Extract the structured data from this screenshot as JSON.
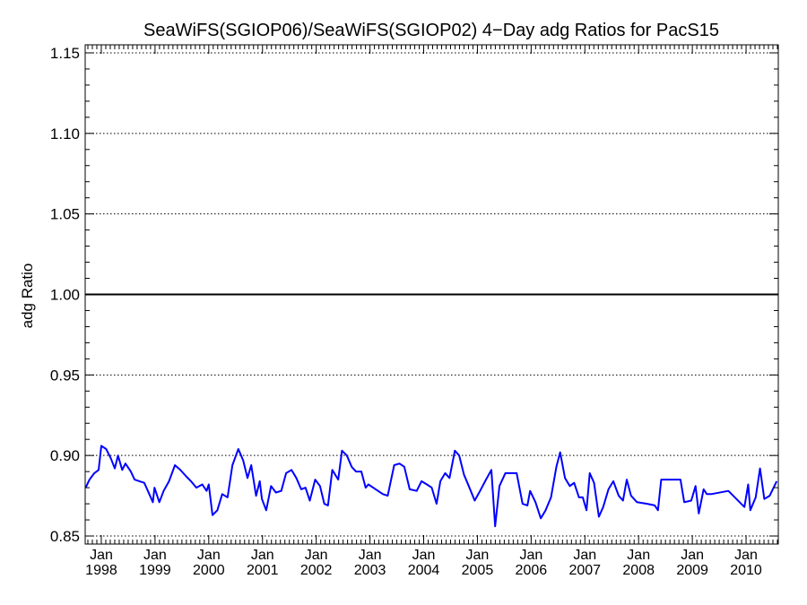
{
  "chart_data": {
    "type": "line",
    "title": "SeaWiFS(SGIOP06)/SeaWiFS(SGIOP02) 4−Day adg Ratios for PacS15",
    "xlabel": "",
    "ylabel": "adg Ratio",
    "xlim": [
      1997.7,
      2010.6
    ],
    "ylim": [
      0.845,
      1.155
    ],
    "yticks": [
      0.85,
      0.9,
      0.95,
      1.0,
      1.05,
      1.1,
      1.15
    ],
    "ytick_labels": [
      "0.85",
      "0.90",
      "0.95",
      "1.00",
      "1.05",
      "1.10",
      "1.15"
    ],
    "xticks": [
      1998,
      1999,
      2000,
      2001,
      2002,
      2003,
      2004,
      2005,
      2006,
      2007,
      2008,
      2009,
      2010
    ],
    "xtick_month_label": "Jan",
    "xtick_year_labels": [
      "1998",
      "1999",
      "2000",
      "2001",
      "2002",
      "2003",
      "2004",
      "2005",
      "2006",
      "2007",
      "2008",
      "2009",
      "2010"
    ],
    "grid": "horizontal-dotted",
    "reference_line": {
      "y": 1.0,
      "color": "#000000"
    },
    "series": [
      {
        "color": "#0000ff",
        "x": [
          1997.71,
          1997.78,
          1997.87,
          1997.95,
          1998.0,
          1998.09,
          1998.18,
          1998.25,
          1998.31,
          1998.39,
          1998.45,
          1998.55,
          1998.62,
          1998.71,
          1998.8,
          1998.96,
          1998.99,
          1999.08,
          1999.16,
          1999.26,
          1999.37,
          1999.47,
          1999.58,
          1999.67,
          1999.77,
          1999.88,
          1999.96,
          2000.0,
          2000.07,
          2000.16,
          2000.25,
          2000.35,
          2000.44,
          2000.55,
          2000.64,
          2000.72,
          2000.79,
          2000.88,
          2000.95,
          2000.99,
          2001.07,
          2001.16,
          2001.25,
          2001.35,
          2001.44,
          2001.54,
          2001.63,
          2001.72,
          2001.8,
          2001.88,
          2001.98,
          2002.07,
          2002.15,
          2002.22,
          2002.3,
          2002.41,
          2002.48,
          2002.57,
          2002.66,
          2002.74,
          2002.84,
          2002.92,
          2002.97,
          2003.06,
          2003.15,
          2003.24,
          2003.33,
          2003.45,
          2003.55,
          2003.64,
          2003.74,
          2003.87,
          2003.96,
          2004.06,
          2004.15,
          2004.24,
          2004.31,
          2004.4,
          2004.48,
          2004.58,
          2004.66,
          2004.75,
          2004.84,
          2004.95,
          2005.05,
          2005.16,
          2005.26,
          2005.33,
          2005.41,
          2005.52,
          2005.62,
          2005.73,
          2005.84,
          2005.93,
          2005.98,
          2006.08,
          2006.18,
          2006.27,
          2006.37,
          2006.47,
          2006.54,
          2006.63,
          2006.72,
          2006.8,
          2006.89,
          2006.96,
          2007.03,
          2007.09,
          2007.17,
          2007.26,
          2007.34,
          2007.44,
          2007.53,
          2007.63,
          2007.71,
          2007.78,
          2007.86,
          2007.97,
          2008.16,
          2008.3,
          2008.36,
          2008.42,
          2008.78,
          2008.85,
          2008.98,
          2009.06,
          2009.12,
          2009.21,
          2009.27,
          2009.35,
          2009.67,
          2009.97,
          2010.04,
          2010.08,
          2010.18,
          2010.26,
          2010.34,
          2010.44,
          2010.57
        ],
        "values": [
          0.88,
          0.885,
          0.889,
          0.891,
          0.906,
          0.904,
          0.898,
          0.892,
          0.9,
          0.891,
          0.895,
          0.89,
          0.885,
          0.884,
          0.883,
          0.871,
          0.88,
          0.871,
          0.878,
          0.884,
          0.894,
          0.891,
          0.887,
          0.884,
          0.88,
          0.882,
          0.878,
          0.882,
          0.863,
          0.866,
          0.876,
          0.874,
          0.894,
          0.904,
          0.897,
          0.886,
          0.894,
          0.875,
          0.884,
          0.873,
          0.866,
          0.881,
          0.877,
          0.878,
          0.889,
          0.891,
          0.886,
          0.879,
          0.88,
          0.872,
          0.885,
          0.881,
          0.87,
          0.869,
          0.891,
          0.885,
          0.903,
          0.9,
          0.893,
          0.89,
          0.89,
          0.88,
          0.882,
          0.88,
          0.878,
          0.876,
          0.875,
          0.894,
          0.895,
          0.893,
          0.879,
          0.878,
          0.884,
          0.882,
          0.88,
          0.87,
          0.884,
          0.889,
          0.886,
          0.903,
          0.9,
          0.888,
          0.881,
          0.872,
          0.878,
          0.885,
          0.891,
          0.856,
          0.881,
          0.889,
          0.889,
          0.889,
          0.87,
          0.869,
          0.878,
          0.871,
          0.861,
          0.866,
          0.874,
          0.893,
          0.902,
          0.886,
          0.881,
          0.883,
          0.874,
          0.874,
          0.866,
          0.889,
          0.883,
          0.862,
          0.868,
          0.879,
          0.884,
          0.875,
          0.872,
          0.885,
          0.875,
          0.871,
          0.87,
          0.869,
          0.866,
          0.885,
          0.885,
          0.871,
          0.872,
          0.881,
          0.864,
          0.879,
          0.876,
          0.876,
          0.878,
          0.868,
          0.882,
          0.866,
          0.874,
          0.892,
          0.873,
          0.875,
          0.884
        ]
      }
    ]
  },
  "colors": {
    "series": "#0000ff",
    "axis": "#000000",
    "background": "#ffffff"
  }
}
